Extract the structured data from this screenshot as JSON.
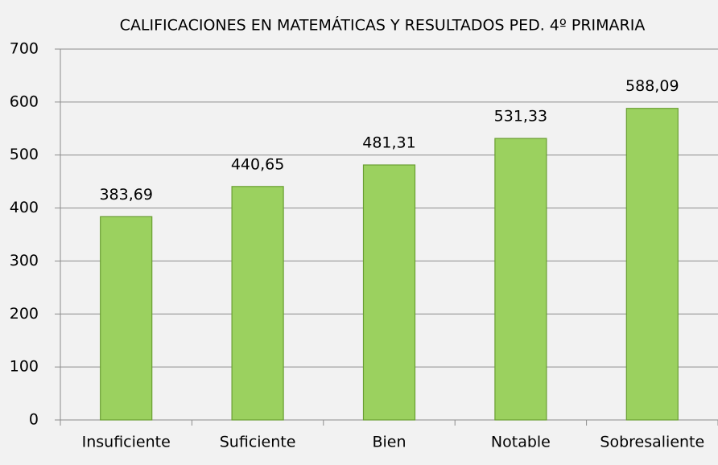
{
  "chart_data": {
    "type": "bar",
    "title": "CALIFICACIONES EN MATEMÁTICAS Y RESULTADOS PED. 4º PRIMARIA",
    "categories": [
      "Insuficiente",
      "Suficiente",
      "Bien",
      "Notable",
      "Sobresaliente"
    ],
    "values": [
      383.69,
      440.65,
      481.31,
      531.33,
      588.09
    ],
    "value_labels": [
      "383,69",
      "440,65",
      "481,31",
      "531,33",
      "588,09"
    ],
    "color": "#9bd15f",
    "ylim": [
      0,
      700
    ],
    "yticks": [
      0,
      100,
      200,
      300,
      400,
      500,
      600,
      700
    ],
    "grid": true
  }
}
